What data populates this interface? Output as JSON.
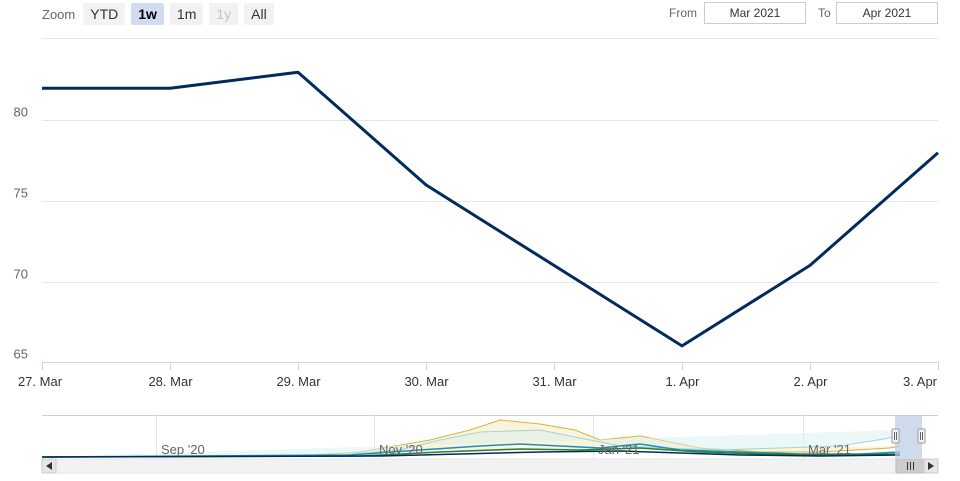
{
  "range_selector": {
    "zoom_label": "Zoom",
    "buttons": [
      {
        "label": "YTD",
        "state": "normal"
      },
      {
        "label": "1w",
        "state": "active"
      },
      {
        "label": "1m",
        "state": "normal"
      },
      {
        "label": "1y",
        "state": "disabled"
      },
      {
        "label": "All",
        "state": "normal"
      }
    ],
    "from_label": "From",
    "from_value": "Mar 2021",
    "to_label": "To",
    "to_value": "Apr 2021"
  },
  "navigator": {
    "labels": [
      "Sep '20",
      "Nov '20",
      "Jan '21",
      "Mar '21"
    ],
    "scroll_icon": "scrollbar-grip-icon"
  },
  "colors": {
    "line": "#002b5c",
    "grid": "#e6e6e6",
    "navigator_mask": "#bccbe6"
  },
  "chart_data": {
    "type": "line",
    "title": "",
    "xlabel": "",
    "ylabel": "",
    "categories": [
      "27. Mar",
      "28. Mar",
      "29. Mar",
      "30. Mar",
      "31. Mar",
      "1. Apr",
      "2. Apr",
      "3. Apr"
    ],
    "series": [
      {
        "values": [
          82,
          82,
          83,
          76,
          71,
          66,
          71,
          78
        ]
      }
    ],
    "ylim": [
      65,
      85
    ],
    "yticks": [
      65,
      70,
      75,
      80
    ],
    "grid": true,
    "legend": "none"
  }
}
